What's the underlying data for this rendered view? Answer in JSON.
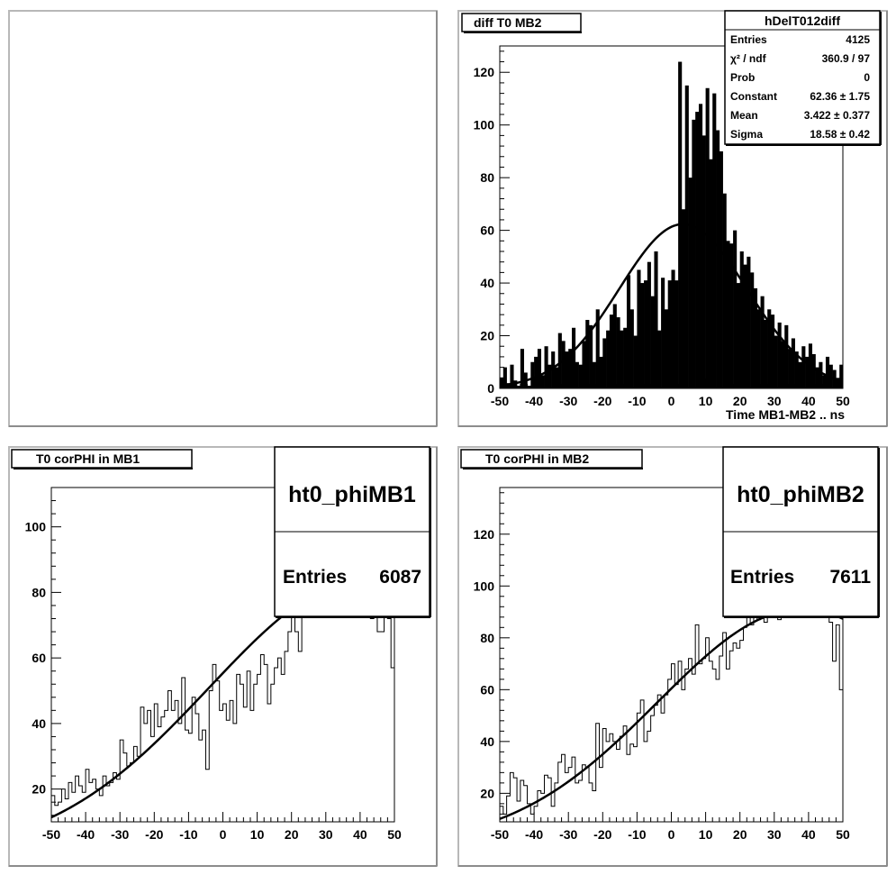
{
  "chart_data": [
    {
      "type": "empty",
      "title": ""
    },
    {
      "type": "bar",
      "title": "diff T0 MB2",
      "xlabel": "Time MB1-MB2  ..  ns",
      "ylabel": "",
      "xlim": [
        -50,
        50
      ],
      "ylim": [
        0,
        130
      ],
      "xticks": [
        -50,
        -40,
        -30,
        -20,
        -10,
        0,
        10,
        20,
        30,
        40,
        50
      ],
      "yticks": [
        0,
        20,
        40,
        60,
        80,
        100,
        120
      ],
      "bin_width": 1,
      "values": [
        4,
        8,
        2,
        9,
        3,
        1,
        15,
        6,
        1,
        10,
        12,
        15,
        5,
        16,
        9,
        14,
        8,
        21,
        18,
        14,
        15,
        23,
        10,
        9,
        18,
        26,
        24,
        10,
        30,
        12,
        19,
        22,
        28,
        32,
        27,
        22,
        23,
        43,
        30,
        20,
        45,
        40,
        41,
        48,
        35,
        52,
        22,
        42,
        30,
        41,
        45,
        41,
        124,
        68,
        115,
        80,
        102,
        105,
        108,
        96,
        114,
        87,
        112,
        98,
        90,
        74,
        56,
        55,
        60,
        40,
        52,
        47,
        50,
        44,
        38,
        30,
        35,
        26,
        30,
        28,
        20,
        25,
        18,
        24,
        15,
        19,
        14,
        10,
        16,
        12,
        17,
        13,
        8,
        10,
        5,
        12,
        9,
        7,
        4,
        9
      ],
      "fit": {
        "constant": 62.36,
        "mean": 3.422,
        "sigma": 18.58
      },
      "stats": {
        "name": "hDelT012diff",
        "rows": [
          {
            "label": "Entries",
            "value": "4125"
          },
          {
            "label": "χ² / ndf",
            "value": "360.9 / 97"
          },
          {
            "label": "Prob",
            "value": "0"
          },
          {
            "label": "Constant",
            "value": "62.36 ± 1.75"
          },
          {
            "label": "Mean",
            "value": "3.422 ± 0.377"
          },
          {
            "label": "Sigma",
            "value": "18.58 ± 0.42"
          }
        ]
      }
    },
    {
      "type": "line",
      "title": "T0 corPHI in MB1",
      "xlabel": "",
      "ylabel": "",
      "xlim": [
        -50,
        50
      ],
      "ylim": [
        10,
        112
      ],
      "xticks": [
        -50,
        -40,
        -30,
        -20,
        -10,
        0,
        10,
        20,
        30,
        40,
        50
      ],
      "yticks": [
        20,
        40,
        60,
        80,
        100
      ],
      "bin_width": 1,
      "values": [
        18,
        15,
        16,
        20,
        17,
        22,
        19,
        24,
        21,
        19,
        26,
        22,
        23,
        20,
        18,
        24,
        21,
        22,
        25,
        23,
        35,
        31,
        27,
        28,
        33,
        30,
        45,
        40,
        44,
        36,
        46,
        39,
        42,
        44,
        50,
        44,
        47,
        40,
        54,
        38,
        37,
        48,
        43,
        35,
        38,
        26,
        50,
        58,
        53,
        44,
        46,
        41,
        47,
        40,
        55,
        52,
        45,
        56,
        44,
        52,
        55,
        61,
        58,
        46,
        52,
        57,
        60,
        55,
        62,
        68,
        73,
        68,
        62,
        73,
        77,
        79,
        74,
        81,
        82,
        76,
        80,
        80,
        80,
        80,
        80,
        80,
        80,
        80,
        80,
        80,
        78,
        74,
        77,
        72,
        78,
        68,
        68,
        75,
        72,
        57,
        53
      ],
      "fit": {
        "constant": 84.0,
        "mean": 42.0,
        "sigma": 46.0
      },
      "stats": {
        "name": "ht0_phiMB1",
        "rows": [
          {
            "label": "Entries",
            "value": "6087"
          }
        ]
      }
    },
    {
      "type": "line",
      "title": "T0 corPHI in MB2",
      "xlabel": "",
      "ylabel": "",
      "xlim": [
        -50,
        50
      ],
      "ylim": [
        9,
        138
      ],
      "xticks": [
        -50,
        -40,
        -30,
        -20,
        -10,
        0,
        10,
        20,
        30,
        40,
        50
      ],
      "yticks": [
        20,
        40,
        60,
        80,
        100,
        120
      ],
      "bin_width": 1,
      "values": [
        15,
        12,
        19,
        28,
        26,
        17,
        25,
        23,
        16,
        12,
        15,
        21,
        20,
        27,
        26,
        15,
        24,
        32,
        35,
        28,
        30,
        34,
        24,
        25,
        31,
        30,
        24,
        21,
        47,
        30,
        45,
        40,
        43,
        40,
        37,
        42,
        46,
        35,
        39,
        38,
        51,
        56,
        40,
        44,
        50,
        54,
        58,
        51,
        58,
        64,
        70,
        62,
        71,
        60,
        68,
        72,
        66,
        85,
        70,
        72,
        80,
        71,
        68,
        64,
        73,
        82,
        68,
        75,
        78,
        76,
        79,
        84,
        88,
        85,
        88,
        87,
        90,
        86,
        92,
        96,
        92,
        87,
        90,
        90,
        90,
        90,
        90,
        90,
        90,
        90,
        90,
        90,
        89,
        88,
        89,
        88,
        86,
        71,
        85,
        60,
        62
      ],
      "fit": {
        "constant": 91.0,
        "mean": 38.0,
        "sigma": 42.0
      },
      "stats": {
        "name": "ht0_phiMB2",
        "rows": [
          {
            "label": "Entries",
            "value": "7611"
          }
        ]
      }
    }
  ]
}
